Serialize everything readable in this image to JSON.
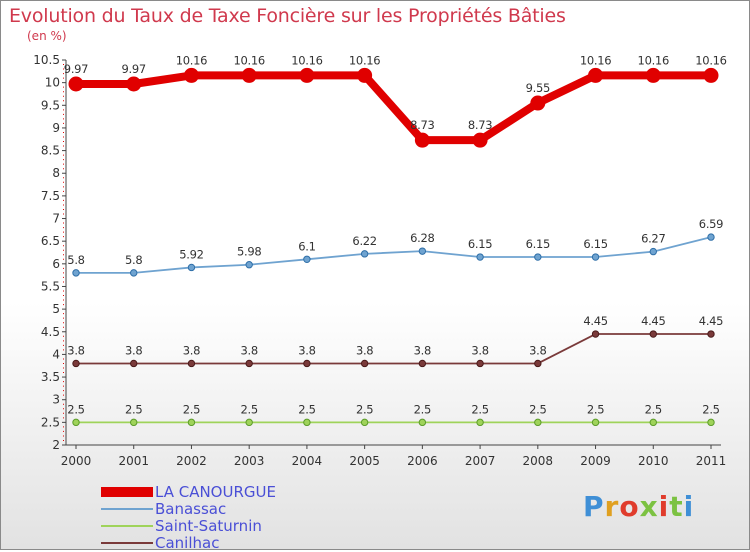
{
  "title": "Evolution du Taux de Taxe Foncière sur les Propriétés Bâties",
  "subtitle": "(en %)",
  "logo": {
    "brand": "Proxiti",
    "colors": [
      "#3f8fd6",
      "#e0a020",
      "#e03c2c",
      "#7cc242"
    ]
  },
  "chart_data": {
    "type": "line",
    "title": "Evolution du Taux de Taxe Foncière sur les Propriétés Bâties",
    "ylabel": "(en %)",
    "xlabel": "",
    "categories": [
      "2000",
      "2001",
      "2002",
      "2003",
      "2004",
      "2005",
      "2006",
      "2007",
      "2008",
      "2009",
      "2010",
      "2011"
    ],
    "ylim": [
      2,
      10.5
    ],
    "yticks": [
      2,
      2.5,
      3,
      3.5,
      4,
      4.5,
      5,
      5.5,
      6,
      6.5,
      7,
      7.5,
      8,
      8.5,
      9,
      9.5,
      10,
      10.5
    ],
    "grid": false,
    "legend_position": "bottom-left",
    "series": [
      {
        "name": "LA CANOURGUE",
        "color": "#e00000",
        "labels": [
          "9.97",
          "9.97",
          "10.16",
          "10.16",
          "10.16",
          "10.16",
          "8.73",
          "8.73",
          "9.55",
          "10.16",
          "10.16",
          "10.16"
        ],
        "values": [
          9.97,
          9.97,
          10.16,
          10.16,
          10.16,
          10.16,
          8.73,
          8.73,
          9.55,
          10.16,
          10.16,
          10.16
        ]
      },
      {
        "name": "Banassac",
        "color": "#6fa3d0",
        "labels": [
          "5.8",
          "5.8",
          "5.92",
          "5.98",
          "6.1",
          "6.22",
          "6.28",
          "6.15",
          "6.15",
          "6.15",
          "6.27",
          "6.59"
        ],
        "values": [
          5.8,
          5.8,
          5.92,
          5.98,
          6.1,
          6.22,
          6.28,
          6.15,
          6.15,
          6.15,
          6.27,
          6.59
        ]
      },
      {
        "name": "Saint-Saturnin",
        "color": "#9fd35a",
        "labels": [
          "2.5",
          "2.5",
          "2.5",
          "2.5",
          "2.5",
          "2.5",
          "2.5",
          "2.5",
          "2.5",
          "2.5",
          "2.5",
          "2.5"
        ],
        "values": [
          2.5,
          2.5,
          2.5,
          2.5,
          2.5,
          2.5,
          2.5,
          2.5,
          2.5,
          2.5,
          2.5,
          2.5
        ]
      },
      {
        "name": "Canilhac",
        "color": "#7a3a3a",
        "labels": [
          "3.8",
          "3.8",
          "3.8",
          "3.8",
          "3.8",
          "3.8",
          "3.8",
          "3.8",
          "3.8",
          "4.45",
          "4.45",
          "4.45"
        ],
        "values": [
          3.8,
          3.8,
          3.8,
          3.8,
          3.8,
          3.8,
          3.8,
          3.8,
          3.8,
          4.45,
          4.45,
          4.45
        ]
      }
    ]
  }
}
